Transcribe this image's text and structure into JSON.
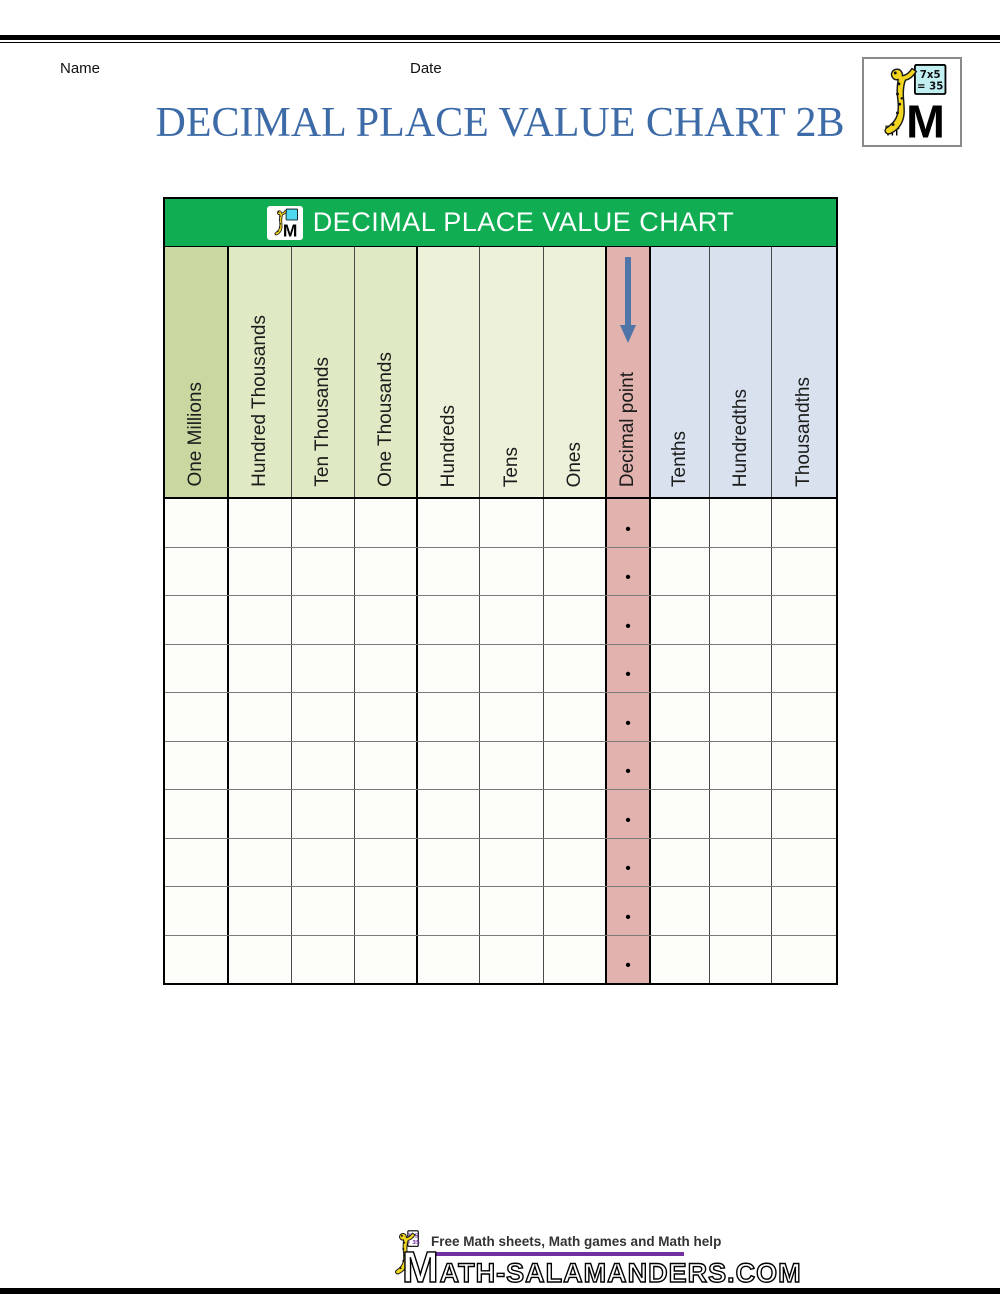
{
  "page": {
    "name_label": "Name",
    "date_label": "Date",
    "title": "DECIMAL PLACE VALUE CHART 2B"
  },
  "logo": {
    "board_line1": "7x5",
    "board_line2": "= 35",
    "letter": "M"
  },
  "table": {
    "banner_title": "DECIMAL PLACE VALUE CHART",
    "columns": [
      {
        "label": "One Millions",
        "group": "millions",
        "thick_right": true
      },
      {
        "label": "Hundred Thousands",
        "group": "thousands",
        "thick_right": false
      },
      {
        "label": "Ten Thousands",
        "group": "thousands",
        "thick_right": false
      },
      {
        "label": "One Thousands",
        "group": "thousands",
        "thick_right": true
      },
      {
        "label": "Hundreds",
        "group": "ones",
        "thick_right": false
      },
      {
        "label": "Tens",
        "group": "ones",
        "thick_right": false
      },
      {
        "label": "Ones",
        "group": "ones",
        "thick_right": true
      },
      {
        "label": "Decimal point",
        "group": "decimal",
        "thick_right": true,
        "has_arrow": true
      },
      {
        "label": "Tenths",
        "group": "fraction",
        "thick_right": false
      },
      {
        "label": "Hundredths",
        "group": "fraction",
        "thick_right": false
      },
      {
        "label": "Thousandths",
        "group": "fraction",
        "thick_right": false
      }
    ],
    "row_count": 10,
    "decimal_dot": "•"
  },
  "footer": {
    "tagline": "Free Math sheets, Math games and Math help",
    "site": "math-salamanders.com"
  },
  "theme": {
    "banner_green": "#10ad53",
    "millions_bg": "#c9d7a0",
    "thousands_bg": "#dfe9c4",
    "ones_bg": "#eef1d9",
    "decimal_bg": "#e2b2ae",
    "fraction_bg": "#d9e1ee",
    "title_blue": "#3d6ba7",
    "arrow_blue": "#4f74a8",
    "underline_purple": "#7030a0"
  }
}
